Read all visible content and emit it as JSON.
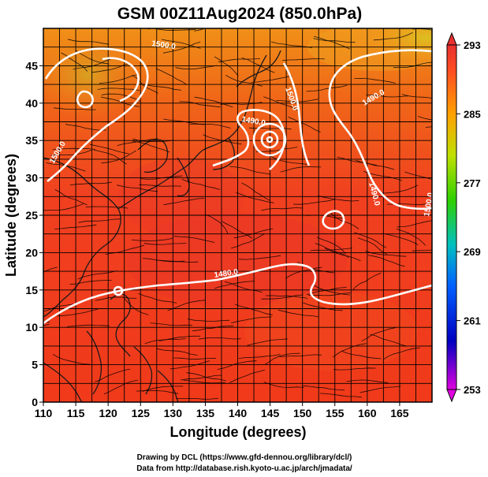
{
  "title": "GSM 00Z11Aug2024 (850.0hPa)",
  "x_axis": {
    "label": "Longitude (degrees)",
    "ticks": [
      "110",
      "115",
      "120",
      "125",
      "130",
      "135",
      "140",
      "145",
      "150",
      "155",
      "160",
      "165"
    ],
    "range": [
      110,
      170
    ]
  },
  "y_axis": {
    "label": "Latitude  (degrees)",
    "ticks": [
      "0",
      "5",
      "10",
      "15",
      "20",
      "25",
      "30",
      "35",
      "40",
      "45"
    ],
    "range": [
      0,
      50
    ]
  },
  "colorbar": {
    "ticks": [
      "253",
      "261",
      "269",
      "277",
      "285",
      "293"
    ],
    "range": [
      253,
      293
    ],
    "colors": [
      "#e000e0",
      "#0000c0",
      "#0090ff",
      "#00c0a0",
      "#30d000",
      "#c0e000",
      "#ffa000",
      "#ff4020",
      "#e83030"
    ]
  },
  "contour_labels": [
    "1500.0",
    "1500.0",
    "1490.0",
    "1500.0",
    "1490.0",
    "1490.0",
    "1480.0",
    "1500.0"
  ],
  "credits": {
    "line1": "Drawing by DCL (https://www.gfd-dennou.org/library/dcl/)",
    "line2": "Data from http://database.rish.kyoto-u.ac.jp/arch/jmadata/"
  },
  "field_colors": {
    "warm": "#f03a1a",
    "mid": "#f06a10",
    "north": "#f09018",
    "cool": "#e8c020"
  }
}
